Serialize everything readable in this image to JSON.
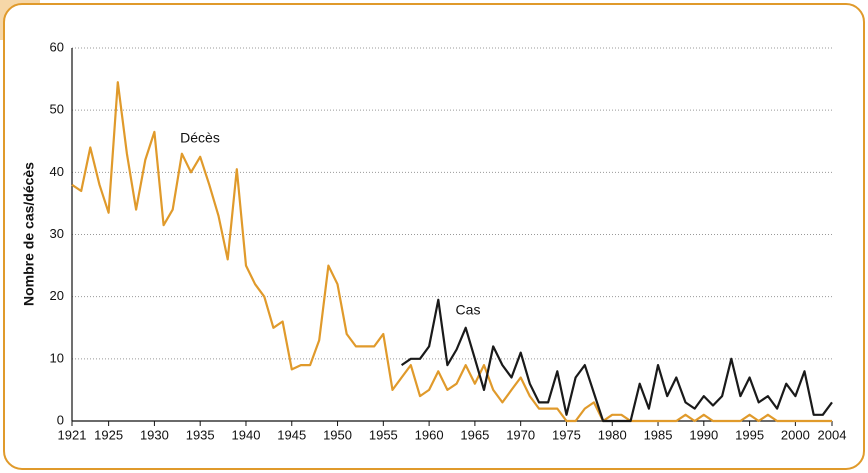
{
  "chart_data": {
    "type": "line",
    "y_label": "Nombre de cas/décès",
    "x": [
      1921,
      1922,
      1923,
      1924,
      1925,
      1926,
      1927,
      1928,
      1929,
      1930,
      1931,
      1932,
      1933,
      1934,
      1935,
      1936,
      1937,
      1938,
      1939,
      1940,
      1941,
      1942,
      1943,
      1944,
      1945,
      1946,
      1947,
      1948,
      1949,
      1950,
      1951,
      1952,
      1953,
      1954,
      1955,
      1956,
      1957,
      1958,
      1959,
      1960,
      1961,
      1962,
      1963,
      1964,
      1965,
      1966,
      1967,
      1968,
      1969,
      1970,
      1971,
      1972,
      1973,
      1974,
      1975,
      1976,
      1977,
      1978,
      1979,
      1980,
      1981,
      1982,
      1983,
      1984,
      1985,
      1986,
      1987,
      1988,
      1989,
      1990,
      1991,
      1992,
      1993,
      1994,
      1995,
      1996,
      1997,
      1998,
      1999,
      2000,
      2001,
      2002,
      2003,
      2004
    ],
    "series": [
      {
        "name": "Décès",
        "color": "#e09a2b",
        "values": [
          38,
          37,
          44,
          38,
          33.5,
          54.5,
          43,
          34,
          42,
          46.5,
          31.5,
          34,
          43,
          40,
          42.5,
          38,
          33,
          26,
          40.5,
          25,
          22,
          20,
          15,
          16,
          8.3,
          9,
          9,
          13,
          25,
          22,
          14,
          12,
          12,
          12,
          14,
          5,
          7,
          9,
          4,
          5,
          8,
          5,
          6,
          9,
          6,
          9,
          5,
          3,
          5,
          7,
          4,
          2,
          2,
          2,
          0,
          0,
          2,
          3,
          0,
          1,
          1,
          0,
          0,
          0,
          0,
          0,
          0,
          1,
          0,
          1,
          0,
          0,
          0,
          0,
          1,
          0,
          1,
          0,
          0,
          0,
          0,
          0,
          0,
          0
        ]
      },
      {
        "name": "Cas",
        "color": "#1a1a1a",
        "values": [
          null,
          null,
          null,
          null,
          null,
          null,
          null,
          null,
          null,
          null,
          null,
          null,
          null,
          null,
          null,
          null,
          null,
          null,
          null,
          null,
          null,
          null,
          null,
          null,
          null,
          null,
          null,
          null,
          null,
          null,
          null,
          null,
          null,
          null,
          null,
          null,
          9,
          10,
          10,
          12,
          19.5,
          9,
          11.5,
          15,
          10,
          5,
          12,
          9,
          7,
          11,
          6,
          3,
          3,
          8,
          1,
          7,
          9,
          4.5,
          0,
          0,
          0,
          0,
          6,
          2,
          9,
          4,
          7,
          3,
          2,
          4,
          2.5,
          4,
          10,
          4,
          7,
          3,
          4,
          2,
          6,
          4,
          8,
          1,
          1,
          3
        ]
      }
    ],
    "xlim": [
      1921,
      2004
    ],
    "xticks": [
      1921,
      1925,
      1930,
      1935,
      1940,
      1945,
      1950,
      1955,
      1960,
      1965,
      1970,
      1975,
      1980,
      1985,
      1990,
      1995,
      2000,
      2004
    ],
    "ylim": [
      0,
      60
    ],
    "yticks": [
      0,
      10,
      20,
      30,
      40,
      50,
      60
    ],
    "grid": true
  }
}
